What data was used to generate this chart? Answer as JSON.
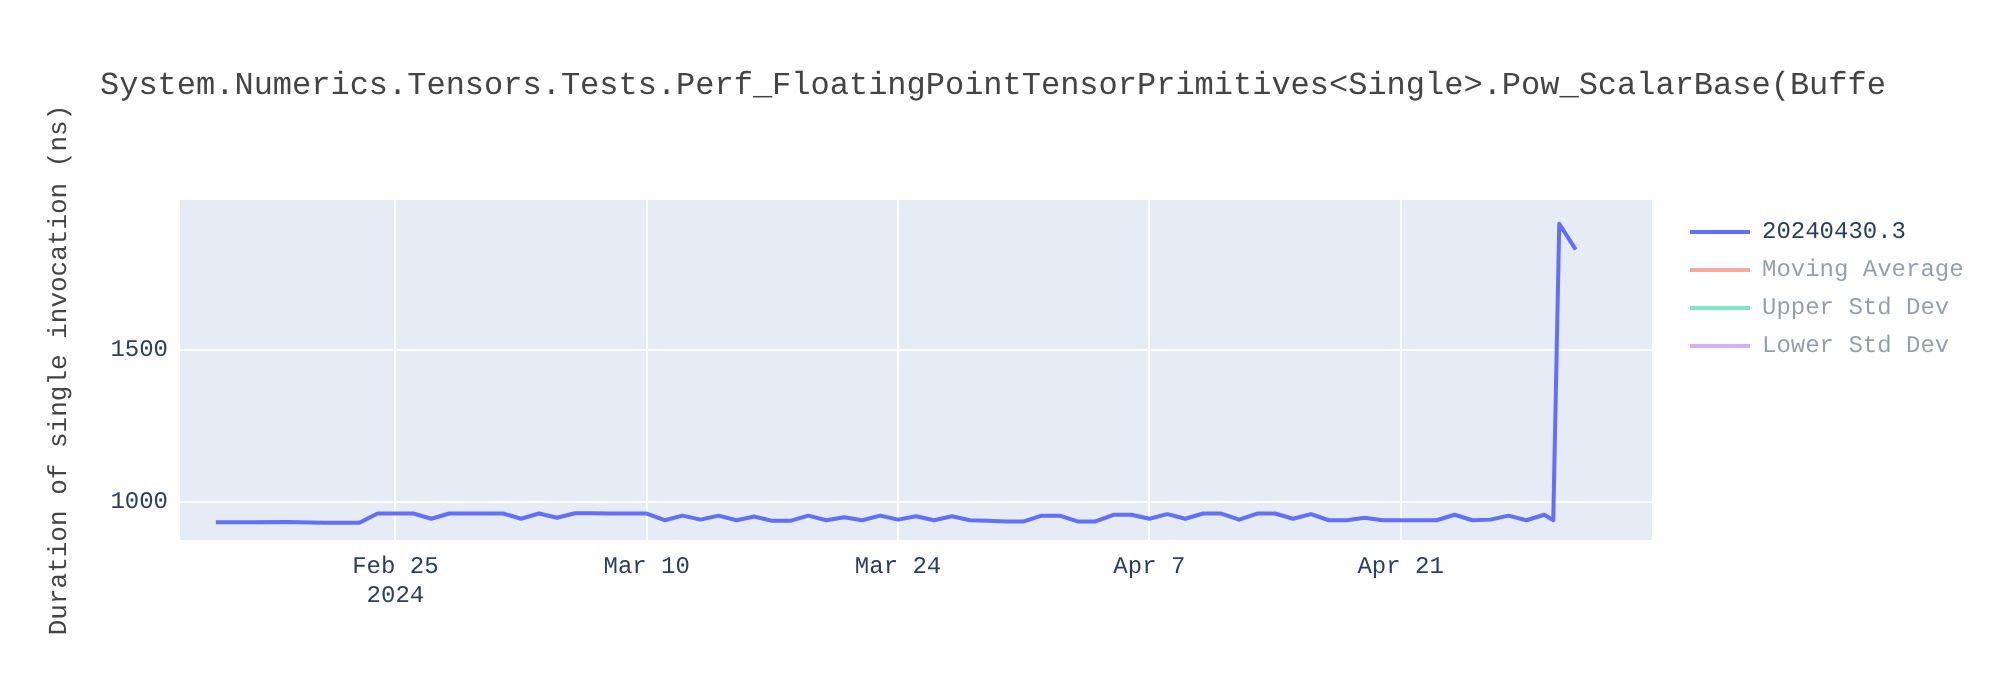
{
  "chart_data": {
    "type": "line",
    "title": "System.Numerics.Tensors.Tests.Perf_FloatingPointTensorPrimitives<Single>.Pow_ScalarBase(Buffe",
    "ylabel": "Duration of single invocation (ns)",
    "xlim": [
      "2024-02-13",
      "2024-05-05"
    ],
    "xticks": [
      {
        "value": "2024-02-25",
        "label": "Feb 25\n2024"
      },
      {
        "value": "2024-03-10",
        "label": "Mar 10"
      },
      {
        "value": "2024-03-24",
        "label": "Mar 24"
      },
      {
        "value": "2024-04-07",
        "label": "Apr 7"
      },
      {
        "value": "2024-04-21",
        "label": "Apr 21"
      }
    ],
    "ylim": [
      875,
      1993
    ],
    "yticks": [
      1000,
      1500
    ],
    "grid": true,
    "legend": "right",
    "marker": "none",
    "line_style": "solid",
    "x": [
      "2024-02-15",
      "2024-02-17",
      "2024-02-19",
      "2024-02-21",
      "2024-02-23",
      "2024-02-24",
      "2024-02-25",
      "2024-02-26",
      "2024-02-27",
      "2024-02-28",
      "2024-03-01",
      "2024-03-02",
      "2024-03-03",
      "2024-03-04",
      "2024-03-05",
      "2024-03-06",
      "2024-03-07",
      "2024-03-08",
      "2024-03-09",
      "2024-03-10",
      "2024-03-11",
      "2024-03-12",
      "2024-03-13",
      "2024-03-14",
      "2024-03-15",
      "2024-03-16",
      "2024-03-17",
      "2024-03-18",
      "2024-03-19",
      "2024-03-20",
      "2024-03-21",
      "2024-03-22",
      "2024-03-23",
      "2024-03-24",
      "2024-03-25",
      "2024-03-26",
      "2024-03-27",
      "2024-03-28",
      "2024-03-29",
      "2024-03-30",
      "2024-03-31",
      "2024-04-01",
      "2024-04-02",
      "2024-04-03",
      "2024-04-04",
      "2024-04-05",
      "2024-04-06",
      "2024-04-07",
      "2024-04-08",
      "2024-04-09",
      "2024-04-10",
      "2024-04-11",
      "2024-04-12",
      "2024-04-13",
      "2024-04-14",
      "2024-04-15",
      "2024-04-16",
      "2024-04-17",
      "2024-04-18",
      "2024-04-19",
      "2024-04-20",
      "2024-04-21",
      "2024-04-22",
      "2024-04-23",
      "2024-04-24",
      "2024-04-25",
      "2024-04-26",
      "2024-04-27",
      "2024-04-28",
      "2024-04-29",
      "2024-04-29T12:00",
      "2024-04-29T20:00",
      "2024-04-30T18:00"
    ],
    "series": [
      {
        "name": "20240430.3",
        "color": "#636efa",
        "values": [
          933,
          933,
          934,
          932,
          932,
          962,
          962,
          962,
          945,
          962,
          962,
          962,
          945,
          962,
          948,
          963,
          963,
          962,
          962,
          962,
          940,
          955,
          942,
          955,
          940,
          952,
          938,
          938,
          955,
          940,
          950,
          940,
          955,
          942,
          953,
          940,
          953,
          940,
          938,
          936,
          936,
          955,
          955,
          936,
          936,
          958,
          958,
          945,
          960,
          945,
          962,
          962,
          942,
          962,
          962,
          945,
          960,
          940,
          940,
          948,
          940,
          940,
          940,
          940,
          958,
          940,
          942,
          955,
          940,
          958,
          940,
          1915,
          1830
        ]
      },
      {
        "name": "Moving Average",
        "color": "#ef553b",
        "values": [
          null,
          null,
          null,
          null,
          null,
          null,
          null,
          null,
          null,
          null,
          null,
          null,
          null,
          null,
          null,
          null,
          null,
          null,
          null,
          null,
          null,
          null,
          null,
          null,
          null,
          null,
          null,
          null,
          null,
          null,
          null,
          null,
          null,
          null,
          null,
          null,
          null,
          null,
          null,
          null,
          null,
          null,
          null,
          null,
          null,
          null,
          null,
          null,
          null,
          null,
          null,
          null,
          null,
          null,
          null,
          null,
          null,
          null,
          null,
          null,
          null,
          null,
          null,
          null,
          null,
          null,
          null,
          null,
          null,
          null,
          null,
          null,
          null
        ]
      },
      {
        "name": "Upper Std Dev",
        "color": "#00cc96",
        "values": [
          null,
          null,
          null,
          null,
          null,
          null,
          null,
          null,
          null,
          null,
          null,
          null,
          null,
          null,
          null,
          null,
          null,
          null,
          null,
          null,
          null,
          null,
          null,
          null,
          null,
          null,
          null,
          null,
          null,
          null,
          null,
          null,
          null,
          null,
          null,
          null,
          null,
          null,
          null,
          null,
          null,
          null,
          null,
          null,
          null,
          null,
          null,
          null,
          null,
          null,
          null,
          null,
          null,
          null,
          null,
          null,
          null,
          null,
          null,
          null,
          null,
          null,
          null,
          null,
          null,
          null,
          null,
          null,
          null,
          null,
          null,
          null,
          null
        ]
      },
      {
        "name": "Lower Std Dev",
        "color": "#ab63fa",
        "values": [
          null,
          null,
          null,
          null,
          null,
          null,
          null,
          null,
          null,
          null,
          null,
          null,
          null,
          null,
          null,
          null,
          null,
          null,
          null,
          null,
          null,
          null,
          null,
          null,
          null,
          null,
          null,
          null,
          null,
          null,
          null,
          null,
          null,
          null,
          null,
          null,
          null,
          null,
          null,
          null,
          null,
          null,
          null,
          null,
          null,
          null,
          null,
          null,
          null,
          null,
          null,
          null,
          null,
          null,
          null,
          null,
          null,
          null,
          null,
          null,
          null,
          null,
          null,
          null,
          null,
          null,
          null,
          null,
          null,
          null,
          null,
          null,
          null
        ]
      }
    ]
  }
}
